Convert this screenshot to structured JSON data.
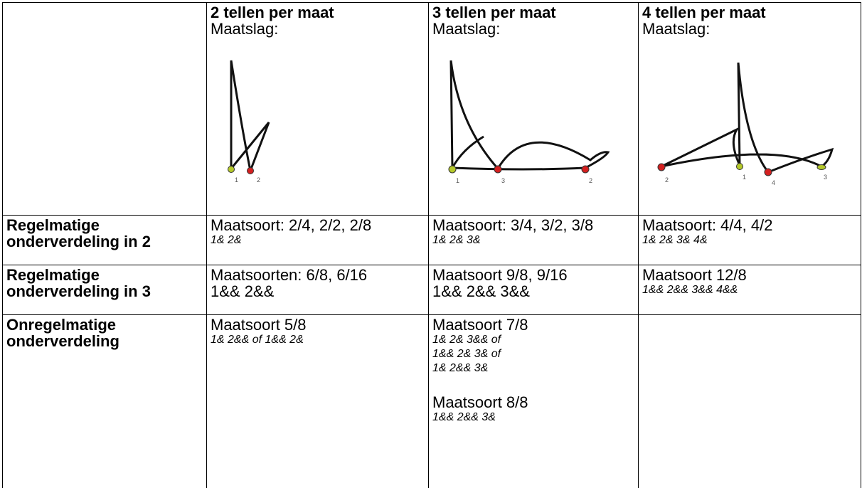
{
  "table": {
    "header": [
      {
        "title": "2 tellen per maat",
        "subtitle": "Maatslag:",
        "labels": [
          "1",
          "2"
        ]
      },
      {
        "title": "3 tellen per maat",
        "subtitle": "Maatslag:",
        "labels": [
          "1",
          "3",
          "2"
        ]
      },
      {
        "title": "4 tellen per maat",
        "subtitle": "Maatslag:",
        "labels": [
          "2",
          "1",
          "4",
          "3"
        ]
      }
    ],
    "rows": [
      {
        "label": [
          "Regelmatige",
          "onderverdeling in 2"
        ],
        "cells": [
          [
            {
              "text": "Maatsoort: 2/4, 2/2, 2/8",
              "italic": false
            },
            {
              "text": "1& 2&",
              "italic": true
            }
          ],
          [
            {
              "text": "Maatsoort: 3/4, 3/2, 3/8",
              "italic": false
            },
            {
              "text": "1& 2& 3&",
              "italic": true
            }
          ],
          [
            {
              "text": "Maatsoort: 4/4, 4/2",
              "italic": false
            },
            {
              "text": "1& 2& 3& 4&",
              "italic": true
            }
          ]
        ]
      },
      {
        "label": [
          "Regelmatige",
          "onderverdeling in 3"
        ],
        "cells": [
          [
            {
              "text": "Maatsoorten: 6/8, 6/16",
              "italic": false
            },
            {
              "text": "1&& 2&&",
              "italic": false
            }
          ],
          [
            {
              "text": "Maatsoort 9/8, 9/16",
              "italic": false
            },
            {
              "text": "1&& 2&& 3&&",
              "italic": false
            }
          ],
          [
            {
              "text": "Maatsoort 12/8",
              "italic": false
            },
            {
              "text": "1&& 2&& 3&& 4&&",
              "italic": true
            }
          ]
        ]
      },
      {
        "label": [
          "Onregelmatige",
          "onderverdeling"
        ],
        "cells": [
          [
            {
              "text": "Maatsoort 5/8",
              "italic": false
            },
            {
              "text": "1& 2&& of 1&& 2&",
              "italic": true
            }
          ],
          [
            {
              "text": "Maatsoort 7/8",
              "italic": false
            },
            {
              "text": "1& 2& 3&& of",
              "italic": true
            },
            {
              "text": "1&& 2& 3& of",
              "italic": true
            },
            {
              "text": "1& 2&& 3&",
              "italic": true
            },
            {
              "text": "Maatsoort 8/8",
              "italic": false,
              "gap": true
            },
            {
              "text": "1&& 2&& 3&",
              "italic": true
            }
          ],
          []
        ]
      }
    ]
  }
}
